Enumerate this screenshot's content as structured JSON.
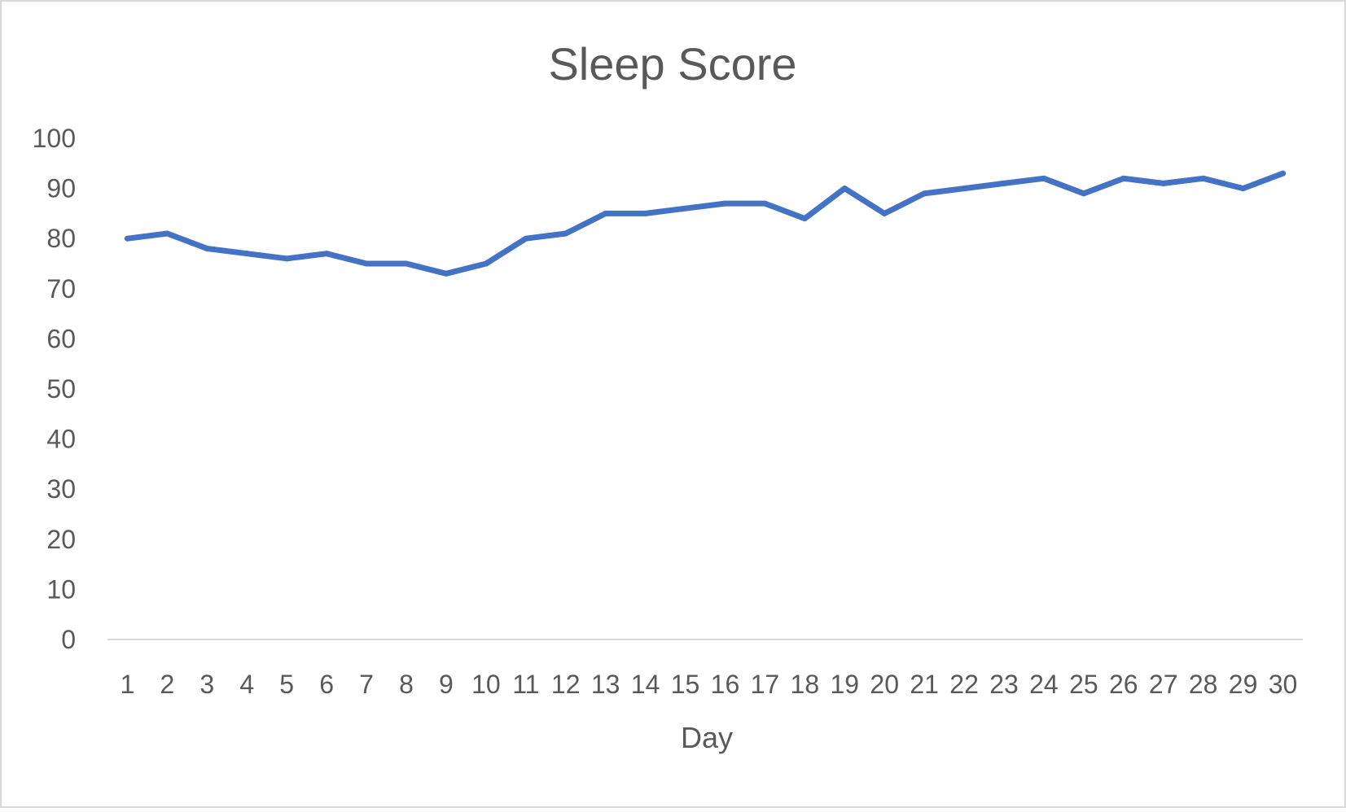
{
  "chart_data": {
    "type": "line",
    "title": "Sleep Score",
    "xlabel": "Day",
    "ylabel": "",
    "x": [
      1,
      2,
      3,
      4,
      5,
      6,
      7,
      8,
      9,
      10,
      11,
      12,
      13,
      14,
      15,
      16,
      17,
      18,
      19,
      20,
      21,
      22,
      23,
      24,
      25,
      26,
      27,
      28,
      29,
      30
    ],
    "series": [
      {
        "values": [
          80,
          81,
          78,
          77,
          76,
          77,
          75,
          75,
          73,
          75,
          80,
          81,
          85,
          85,
          86,
          87,
          87,
          84,
          90,
          85,
          89,
          90,
          91,
          92,
          89,
          92,
          91,
          92,
          90,
          93
        ]
      }
    ],
    "ylim": [
      0,
      100
    ],
    "yticks": [
      0,
      10,
      20,
      30,
      40,
      50,
      60,
      70,
      80,
      90,
      100
    ],
    "grid": false,
    "legend": "none",
    "colors": {
      "line": "#4472C4",
      "axis": "#D9D9D9",
      "text": "#595959",
      "border": "#D9D9D9"
    }
  }
}
